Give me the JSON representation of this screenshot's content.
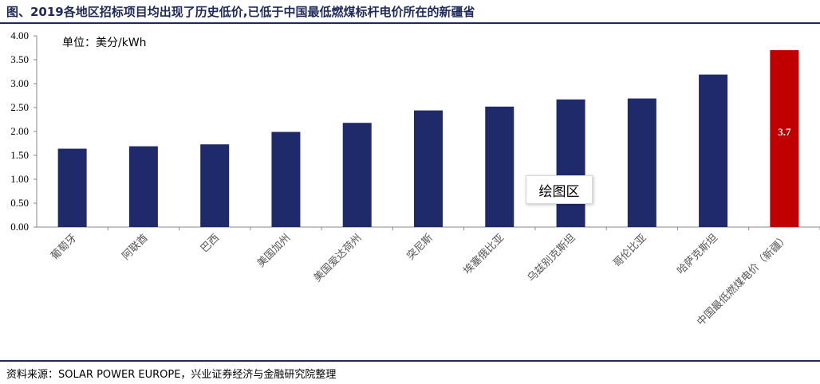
{
  "title": "图、2019各地区招标项目均出现了历史低价,已低于中国最低燃煤标杆电价所在的新疆省",
  "unit_label": "单位：美分/kWh",
  "tooltip": "绘图区",
  "source": "资料来源：SOLAR POWER EUROPE，兴业证券经济与金融研究院整理",
  "colors": {
    "bar": "#1f2a6b",
    "highlight": "#c00000",
    "rule": "#1f2a5a"
  },
  "chart_data": {
    "type": "bar",
    "categories": [
      "葡萄牙",
      "阿联酋",
      "巴西",
      "美国加州",
      "美国爱达荷州",
      "突尼斯",
      "埃塞俄比亚",
      "乌兹别克斯坦",
      "哥伦比亚",
      "哈萨克斯坦",
      "中国最低燃煤电价（新疆）"
    ],
    "values": [
      1.64,
      1.69,
      1.73,
      1.99,
      2.18,
      2.44,
      2.52,
      2.67,
      2.69,
      3.19,
      3.7
    ],
    "highlight_index": 10,
    "data_labels": [
      {
        "index": 10,
        "text": "3.7"
      }
    ],
    "ylim": [
      0,
      4
    ],
    "yticks": [
      "0.00",
      "0.50",
      "1.00",
      "1.50",
      "2.00",
      "2.50",
      "3.00",
      "3.50",
      "4.00"
    ],
    "xlabel": "",
    "ylabel": "",
    "grid": false
  }
}
